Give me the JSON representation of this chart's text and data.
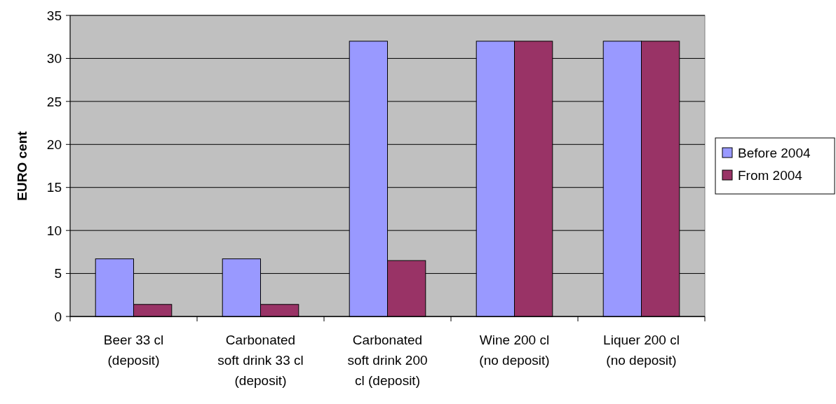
{
  "chart_data": {
    "type": "bar",
    "ylabel": "EURO cent",
    "categories": [
      "Beer 33 cl\n(deposit)",
      "Carbonated\nsoft drink 33 cl\n(deposit)",
      "Carbonated\nsoft drink 200\ncl (deposit)",
      "Wine 200 cl\n(no deposit)",
      "Liquer 200 cl\n(no deposit)"
    ],
    "series": [
      {
        "name": "Before 2004",
        "color": "#9999ff",
        "values": [
          6.7,
          6.7,
          32,
          32,
          32
        ]
      },
      {
        "name": "From 2004",
        "color": "#993366",
        "values": [
          1.4,
          1.4,
          6.5,
          32,
          32
        ]
      }
    ],
    "ylim": [
      0,
      35
    ],
    "yticks": [
      0,
      5,
      10,
      15,
      20,
      25,
      30,
      35
    ],
    "grid": "y",
    "legend": "right"
  }
}
